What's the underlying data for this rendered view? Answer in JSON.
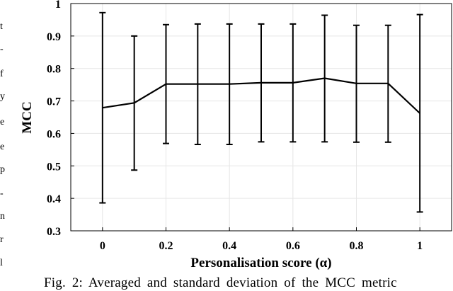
{
  "chart_data": {
    "type": "line",
    "xlabel": "Personalisation score (α)",
    "ylabel": "MCC",
    "xlim": [
      -0.1,
      1.1
    ],
    "ylim": [
      0.3,
      1.0
    ],
    "xticks": [
      0,
      0.2,
      0.4,
      0.6,
      0.8,
      1
    ],
    "xtick_labels": [
      "0",
      "0.2",
      "0.4",
      "0.6",
      "0.8",
      "1"
    ],
    "yticks": [
      0.3,
      0.4,
      0.5,
      0.6,
      0.7,
      0.8,
      0.9,
      1.0
    ],
    "ytick_labels": [
      "0.3",
      "0.4",
      "0.5",
      "0.6",
      "0.7",
      "0.8",
      "0.9",
      "1"
    ],
    "grid": true,
    "series": [
      {
        "x": [
          0,
          0.1,
          0.2,
          0.3,
          0.4,
          0.5,
          0.6,
          0.7,
          0.8,
          0.9,
          1.0
        ],
        "y": [
          0.679,
          0.694,
          0.752,
          0.752,
          0.752,
          0.756,
          0.756,
          0.77,
          0.754,
          0.754,
          0.662
        ],
        "err_low": [
          0.386,
          0.487,
          0.569,
          0.566,
          0.566,
          0.574,
          0.574,
          0.574,
          0.573,
          0.573,
          0.358
        ],
        "err_high": [
          0.972,
          0.9,
          0.935,
          0.937,
          0.937,
          0.937,
          0.937,
          0.964,
          0.933,
          0.933,
          0.966
        ]
      }
    ],
    "color": "#000000"
  },
  "caption": "Fig. 2: Averaged and standard deviation of the MCC metric",
  "side_text": [
    "t",
    "-",
    "f",
    "y",
    "e",
    "e",
    "p",
    "-",
    "n",
    "r",
    "l"
  ]
}
